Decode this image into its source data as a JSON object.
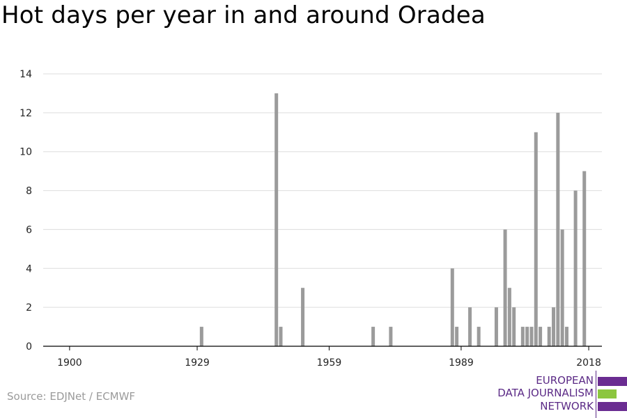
{
  "title": "Hot days per year in and around Oradea",
  "source": "Source: EDJNet / ECMWF",
  "logo": {
    "lines": [
      "EUROPEAN",
      "DATA JOURNALISM",
      "NETWORK"
    ],
    "colors": {
      "text": "#5b2a86",
      "bar_top": "#6a2c91",
      "bar_middle": "#8cc63f",
      "bar_bottom": "#6a2c91"
    }
  },
  "colors": {
    "bar": "#9b9b9b",
    "grid": "#dddddd",
    "axis": "#000000"
  },
  "chart_data": {
    "type": "bar",
    "title": "Hot days per year in and around Oradea",
    "xlabel": "",
    "ylabel": "",
    "xlim": [
      1894,
      2021
    ],
    "ylim": [
      0,
      14
    ],
    "grid": true,
    "x_ticks": [
      1900,
      1929,
      1959,
      1989,
      2018
    ],
    "y_ticks": [
      0,
      2,
      4,
      6,
      8,
      10,
      12,
      14
    ],
    "x": [
      1930,
      1947,
      1948,
      1953,
      1969,
      1973,
      1987,
      1988,
      1991,
      1993,
      1997,
      1999,
      2000,
      2001,
      2003,
      2004,
      2005,
      2006,
      2007,
      2009,
      2010,
      2011,
      2012,
      2013,
      2015,
      2017
    ],
    "values": [
      1,
      13,
      1,
      3,
      1,
      1,
      4,
      1,
      2,
      1,
      2,
      6,
      3,
      2,
      1,
      1,
      1,
      11,
      1,
      1,
      2,
      12,
      6,
      1,
      8,
      9
    ]
  }
}
